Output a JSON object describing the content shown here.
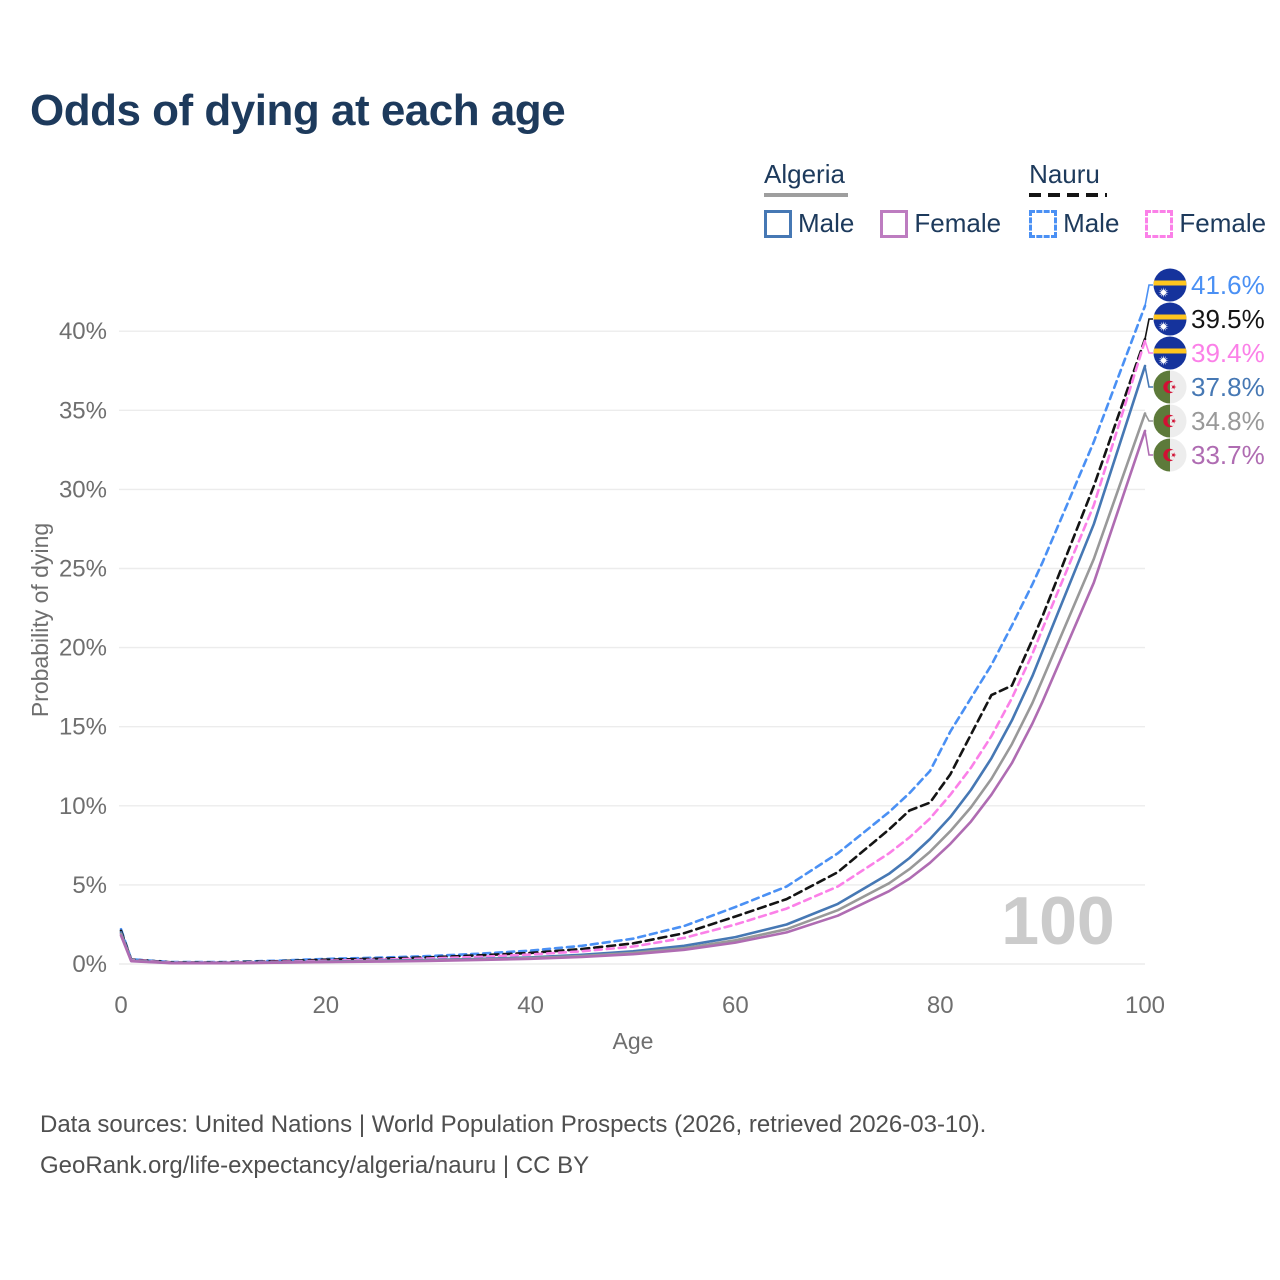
{
  "title": "Odds of dying at each age",
  "legend": {
    "groups": [
      {
        "country": "Algeria",
        "line_style": "solid",
        "underline_color": "#9e9e9e",
        "items": [
          {
            "label": "Male",
            "color": "#4678b4"
          },
          {
            "label": "Female",
            "color": "#bd7cc0"
          }
        ]
      },
      {
        "country": "Nauru",
        "line_style": "dashed",
        "underline_color": "#141414",
        "items": [
          {
            "label": "Male",
            "color": "#4a90f4"
          },
          {
            "label": "Female",
            "color": "#fb80e8"
          }
        ]
      }
    ]
  },
  "chart_data": {
    "type": "line",
    "title": "Odds of dying at each age",
    "xlabel": "Age",
    "ylabel": "Probability of dying",
    "xlim": [
      0,
      100
    ],
    "ylim": [
      0,
      43
    ],
    "grid": "horizontal",
    "legend_position": "top-right",
    "hover_age_watermark": "100",
    "watermark_color": "#cbcbcb",
    "xticks": [
      {
        "value": 0,
        "label": "0"
      },
      {
        "value": 20,
        "label": "20"
      },
      {
        "value": 40,
        "label": "40"
      },
      {
        "value": 60,
        "label": "60"
      },
      {
        "value": 80,
        "label": "80"
      },
      {
        "value": 100,
        "label": "100"
      }
    ],
    "yticks": [
      {
        "value": 0,
        "label": "0%"
      },
      {
        "value": 5,
        "label": "5%"
      },
      {
        "value": 10,
        "label": "10%"
      },
      {
        "value": 15,
        "label": "15%"
      },
      {
        "value": 20,
        "label": "20%"
      },
      {
        "value": 25,
        "label": "25%"
      },
      {
        "value": 30,
        "label": "30%"
      },
      {
        "value": 35,
        "label": "35%"
      },
      {
        "value": 40,
        "label": "40%"
      }
    ],
    "ages": [
      0,
      1,
      5,
      10,
      15,
      20,
      25,
      30,
      35,
      40,
      45,
      50,
      55,
      60,
      65,
      70,
      75,
      77,
      79,
      81,
      83,
      85,
      87,
      89,
      90,
      95,
      100
    ],
    "series": [
      {
        "id": "nauru-male",
        "country": "Nauru",
        "sex": "Male",
        "color": "#4a90f4",
        "dash": "7,5",
        "flag": "nauru",
        "end_value_label": "41.6%",
        "end_value": 41.6,
        "values": [
          2.2,
          0.3,
          0.12,
          0.12,
          0.2,
          0.32,
          0.4,
          0.5,
          0.65,
          0.85,
          1.15,
          1.6,
          2.4,
          3.6,
          4.9,
          7.0,
          9.6,
          10.8,
          12.2,
          14.7,
          16.8,
          18.9,
          21.4,
          24.0,
          25.4,
          33.0,
          41.6
        ]
      },
      {
        "id": "nauru-total",
        "country": "Nauru",
        "sex": "Both sexes",
        "color": "#141414",
        "dash": "8,5",
        "flag": "nauru",
        "end_value_label": "39.5%",
        "end_value": 39.5,
        "values": [
          2.1,
          0.28,
          0.1,
          0.1,
          0.17,
          0.27,
          0.33,
          0.42,
          0.55,
          0.7,
          0.95,
          1.3,
          1.95,
          3.0,
          4.1,
          5.8,
          8.5,
          9.7,
          10.2,
          12.0,
          14.5,
          17.0,
          17.6,
          20.5,
          22.0,
          30.2,
          39.5
        ]
      },
      {
        "id": "nauru-female",
        "country": "Nauru",
        "sex": "Female",
        "color": "#fb80e8",
        "dash": "7,5",
        "flag": "nauru",
        "end_value_label": "39.4%",
        "end_value": 39.4,
        "values": [
          1.9,
          0.25,
          0.09,
          0.09,
          0.13,
          0.2,
          0.27,
          0.35,
          0.45,
          0.6,
          0.8,
          1.1,
          1.65,
          2.5,
          3.5,
          4.9,
          7.0,
          8.0,
          9.2,
          10.7,
          12.4,
          14.4,
          16.8,
          19.6,
          21.2,
          29.0,
          39.4
        ]
      },
      {
        "id": "algeria-male",
        "country": "Algeria",
        "sex": "Male",
        "color": "#4678b4",
        "dash": null,
        "flag": "algeria",
        "end_value_label": "37.8%",
        "end_value": 37.8,
        "values": [
          2.0,
          0.22,
          0.07,
          0.07,
          0.1,
          0.16,
          0.2,
          0.25,
          0.32,
          0.42,
          0.58,
          0.8,
          1.15,
          1.7,
          2.5,
          3.8,
          5.7,
          6.7,
          7.9,
          9.3,
          11.0,
          13.0,
          15.4,
          18.2,
          19.8,
          27.8,
          37.8
        ]
      },
      {
        "id": "algeria-total",
        "country": "Algeria",
        "sex": "Both sexes",
        "color": "#999999",
        "dash": null,
        "flag": "algeria",
        "end_value_label": "34.8%",
        "end_value": 34.8,
        "values": [
          1.9,
          0.2,
          0.06,
          0.06,
          0.09,
          0.14,
          0.18,
          0.22,
          0.28,
          0.37,
          0.5,
          0.7,
          1.0,
          1.5,
          2.2,
          3.4,
          5.1,
          6.0,
          7.1,
          8.4,
          9.9,
          11.7,
          13.9,
          16.5,
          18.0,
          25.6,
          34.8
        ]
      },
      {
        "id": "algeria-female",
        "country": "Algeria",
        "sex": "Female",
        "color": "#af6cb2",
        "dash": null,
        "flag": "algeria",
        "end_value_label": "33.7%",
        "end_value": 33.7,
        "values": [
          1.8,
          0.18,
          0.05,
          0.05,
          0.08,
          0.12,
          0.15,
          0.19,
          0.25,
          0.33,
          0.44,
          0.62,
          0.9,
          1.35,
          2.0,
          3.05,
          4.6,
          5.4,
          6.4,
          7.6,
          9.0,
          10.7,
          12.7,
          15.2,
          16.6,
          24.1,
          33.7
        ]
      }
    ],
    "flag_colors": {
      "nauru_blue": "#15339c",
      "nauru_yellow": "#ffc61e",
      "nauru_star": "#ffffff",
      "algeria_green": "#5d7a3a",
      "algeria_white": "#ededed",
      "algeria_red": "#d21034"
    },
    "axis_text_color": "#6f6f6f",
    "gridline_color": "#ececec"
  },
  "footer": {
    "line1": "Data sources: United Nations | World Population Prospects (2026, retrieved 2026-03-10).",
    "line2": "GeoRank.org/life-expectancy/algeria/nauru | CC BY"
  }
}
